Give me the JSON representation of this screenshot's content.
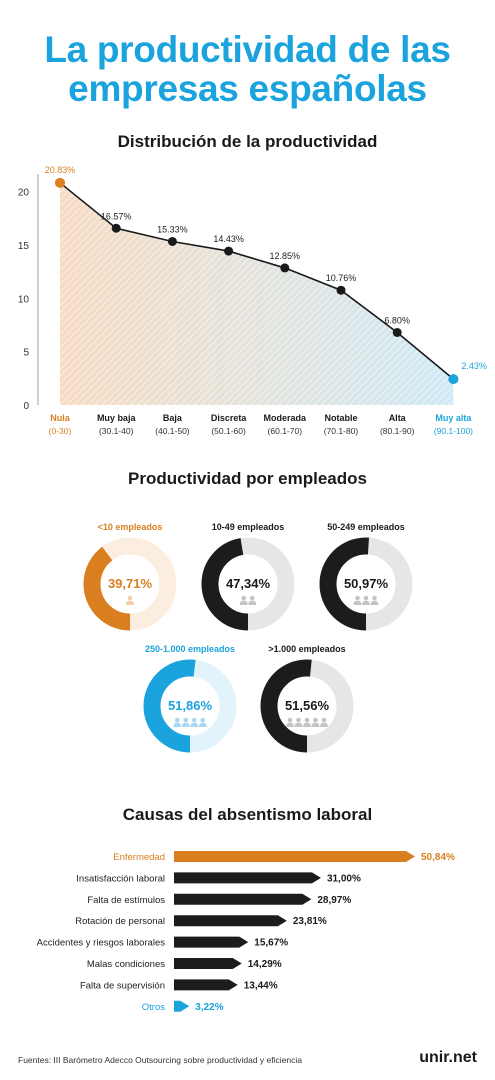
{
  "title_line1": "La productividad de las",
  "title_line2": "empresas españolas",
  "colors": {
    "orange": "#d97f1f",
    "blue": "#1aa3dd",
    "black": "#1c1c1c",
    "track": "#e6e6e6",
    "orange_light": "#fbeee0",
    "blue_light": "#e3f3fb"
  },
  "chart_data": [
    {
      "type": "area",
      "title": "Distribución de la productividad",
      "categories": [
        "Nula",
        "Muy baja",
        "Baja",
        "Discreta",
        "Moderada",
        "Notable",
        "Alta",
        "Muy alta"
      ],
      "ranges": [
        "(0-30)",
        "(30.1-40)",
        "(40.1-50)",
        "(50.1-60)",
        "(60.1-70)",
        "(70.1-80)",
        "(80.1-90)",
        "(90.1-100)"
      ],
      "values": [
        20.83,
        16.57,
        15.33,
        14.43,
        12.85,
        10.76,
        6.8,
        2.43
      ],
      "value_labels": [
        "20.83%",
        "16.57%",
        "15.33%",
        "14.43%",
        "12.85%",
        "10.76%",
        "6.80%",
        "2.43%"
      ],
      "yticks": [
        "0",
        "5",
        "10",
        "15",
        "20"
      ],
      "ylim": [
        0,
        21
      ],
      "grid": false
    },
    {
      "type": "pie",
      "title": "Productividad por empleados",
      "items": [
        {
          "label": "<10 empleados",
          "value": 39.71,
          "value_label": "39,71%",
          "people": 1,
          "color": "orange"
        },
        {
          "label": "10-49 empleados",
          "value": 47.34,
          "value_label": "47,34%",
          "people": 2,
          "color": "black"
        },
        {
          "label": "50-249 empleados",
          "value": 50.97,
          "value_label": "50,97%",
          "people": 3,
          "color": "black"
        },
        {
          "label": "250-1.000 empleados",
          "value": 51.86,
          "value_label": "51,86%",
          "people": 4,
          "color": "blue"
        },
        {
          "label": ">1.000 empleados",
          "value": 51.56,
          "value_label": "51,56%",
          "people": 5,
          "color": "black"
        }
      ]
    },
    {
      "type": "bar",
      "title": "Causas del absentismo laboral",
      "categories": [
        "Enfermedad",
        "Insatisfacción laboral",
        "Falta de estímulos",
        "Rotación de personal",
        "Accidentes y riesgos laborales",
        "Malas condiciones",
        "Falta de supervisión",
        "Otros"
      ],
      "values": [
        50.84,
        31.0,
        28.97,
        23.81,
        15.67,
        14.29,
        13.44,
        3.22
      ],
      "value_labels": [
        "50,84%",
        "31,00%",
        "28,97%",
        "23,81%",
        "15,67%",
        "14,29%",
        "13,44%",
        "3,22%"
      ],
      "colors": [
        "orange",
        "black",
        "black",
        "black",
        "black",
        "black",
        "black",
        "blue"
      ]
    }
  ],
  "footer": {
    "source": "Fuentes: III Barómetro Adecco Outsourcing sobre productividad y eficiencia",
    "logo": "unir.net"
  }
}
